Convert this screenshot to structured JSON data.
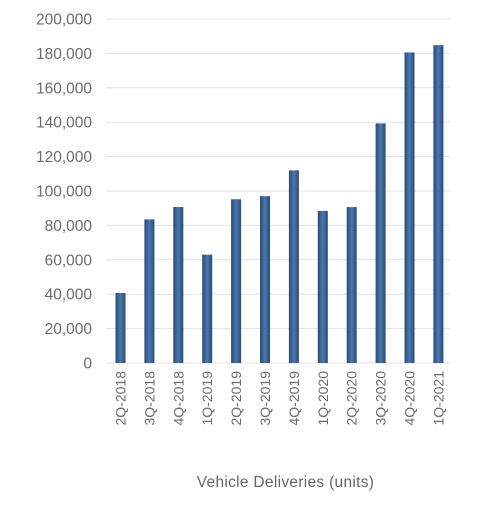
{
  "chart_data": {
    "type": "bar",
    "title": "",
    "xlabel": "Vehicle Deliveries (units)",
    "ylabel": "",
    "ylim": [
      0,
      200000
    ],
    "yticks": [
      "0",
      "20,000",
      "40,000",
      "60,000",
      "80,000",
      "100,000",
      "120,000",
      "140,000",
      "160,000",
      "180,000",
      "200,000"
    ],
    "ytick_values": [
      0,
      20000,
      40000,
      60000,
      80000,
      100000,
      120000,
      140000,
      160000,
      180000,
      200000
    ],
    "grid": true,
    "legend": "none",
    "categories": [
      "2Q-2018",
      "3Q-2018",
      "4Q-2018",
      "1Q-2019",
      "2Q-2019",
      "3Q-2019",
      "4Q-2019",
      "1Q-2020",
      "2Q-2020",
      "3Q-2020",
      "4Q-2020",
      "1Q-2021"
    ],
    "values": [
      40700,
      83500,
      90700,
      63000,
      95200,
      97000,
      112000,
      88400,
      90650,
      139300,
      180570,
      184800
    ],
    "colors": {
      "bar_dark": "#2b4a74",
      "bar_light": "#4a78b0",
      "grid": "#e3e3e3",
      "text": "#6b6b6b"
    }
  }
}
